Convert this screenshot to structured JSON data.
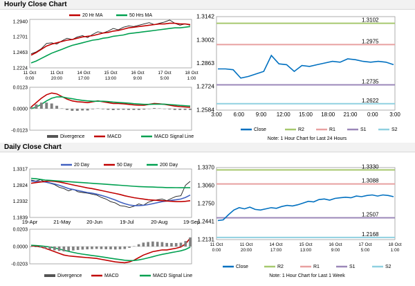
{
  "sections": {
    "hourly_title": "Hourly Close Chart",
    "daily_title": "Daily Close Chart"
  },
  "colors": {
    "price": "#1a1a1a",
    "ma_red": "#c00000",
    "ma_green": "#00a050",
    "ma_blue": "#4060c0",
    "close_line": "#0070c0",
    "r2": "#a6c86e",
    "r1": "#e8a0a0",
    "s1": "#9b87b8",
    "s2": "#8fd0e0",
    "divergence": "#808080"
  },
  "chart_data": [
    {
      "id": "hourly-price",
      "type": "line",
      "legend": [
        "20 Hr MA",
        "50 Hrs MA"
      ],
      "y_ticks": [
        "1.2940",
        "1.2701",
        "1.2463",
        "1.2224"
      ],
      "y_tick_values": [
        1.294,
        1.2701,
        1.2463,
        1.2224
      ],
      "ylim": [
        1.2224,
        1.297
      ],
      "x_ticks": [
        [
          "11 Oct",
          "0:00"
        ],
        [
          "11 Oct",
          "20:00"
        ],
        [
          "14 Oct",
          "17:00"
        ],
        [
          "15 Oct",
          "13:00"
        ],
        [
          "16 Oct",
          "9:00"
        ],
        [
          "17 Oct",
          "5:00"
        ],
        [
          "18 Oct",
          "1:00"
        ]
      ],
      "series": [
        {
          "name": "Price",
          "values": [
            1.244,
            1.247,
            1.252,
            1.26,
            1.261,
            1.259,
            1.264,
            1.268,
            1.266,
            1.27,
            1.272,
            1.269,
            1.274,
            1.278,
            1.276,
            1.279,
            1.283,
            1.281,
            1.285,
            1.287,
            1.286,
            1.288,
            1.29,
            1.292,
            1.289,
            1.291,
            1.293,
            1.296,
            1.291,
            1.288,
            1.29,
            1.288
          ]
        },
        {
          "name": "20 Hr MA",
          "values": [
            1.242,
            1.246,
            1.251,
            1.256,
            1.259,
            1.261,
            1.263,
            1.265,
            1.266,
            1.268,
            1.27,
            1.271,
            1.272,
            1.274,
            1.276,
            1.277,
            1.279,
            1.28,
            1.282,
            1.284,
            1.285,
            1.286,
            1.287,
            1.288,
            1.289,
            1.29,
            1.29,
            1.291,
            1.291,
            1.29,
            1.29,
            1.289
          ]
        },
        {
          "name": "50 Hrs MA",
          "values": [
            1.23,
            1.233,
            1.237,
            1.241,
            1.245,
            1.248,
            1.251,
            1.254,
            1.257,
            1.259,
            1.261,
            1.263,
            1.265,
            1.266,
            1.268,
            1.269,
            1.271,
            1.272,
            1.273,
            1.275,
            1.276,
            1.277,
            1.278,
            1.279,
            1.28,
            1.281,
            1.282,
            1.283,
            1.284,
            1.284,
            1.285,
            1.286
          ]
        }
      ]
    },
    {
      "id": "hourly-macd",
      "type": "line",
      "legend": [
        "Divergence",
        "MACD",
        "MACD Signal Line"
      ],
      "y_ticks": [
        "0.0123",
        "0.0000",
        "-0.0123"
      ],
      "y_tick_values": [
        0.0123,
        0.0,
        -0.0123
      ],
      "ylim": [
        -0.0123,
        0.0123
      ],
      "series": [
        {
          "name": "MACD",
          "values": [
            0.001,
            0.0035,
            0.006,
            0.008,
            0.009,
            0.0085,
            0.007,
            0.0055,
            0.0045,
            0.004,
            0.0038,
            0.0035,
            0.004,
            0.0045,
            0.004,
            0.0035,
            0.003,
            0.003,
            0.0028,
            0.0025,
            0.0022,
            0.002,
            0.002,
            0.0025,
            0.003,
            0.0028,
            0.0025,
            0.002,
            0.0015,
            0.0012,
            0.001,
            0.0008
          ]
        },
        {
          "name": "MACD Signal Line",
          "values": [
            0.0,
            0.001,
            0.0025,
            0.0045,
            0.006,
            0.0068,
            0.0068,
            0.0062,
            0.0057,
            0.0052,
            0.0048,
            0.0045,
            0.0043,
            0.0043,
            0.0043,
            0.0041,
            0.0038,
            0.0036,
            0.0034,
            0.0032,
            0.0029,
            0.0027,
            0.0025,
            0.0025,
            0.0026,
            0.0026,
            0.0026,
            0.0024,
            0.0022,
            0.0019,
            0.0017,
            0.0015
          ]
        },
        {
          "name": "Divergence",
          "values": [
            0.001,
            0.0025,
            0.0035,
            0.0035,
            0.003,
            0.0017,
            0.0002,
            -0.0007,
            -0.0012,
            -0.0012,
            -0.001,
            -0.001,
            -0.0003,
            0.0002,
            -0.0003,
            -0.0006,
            -0.0008,
            -0.0006,
            -0.0006,
            -0.0007,
            -0.0007,
            -0.0007,
            -0.0005,
            0.0,
            0.0004,
            0.0002,
            -0.0001,
            -0.0004,
            -0.0007,
            -0.0007,
            -0.0007,
            -0.0007
          ]
        }
      ]
    },
    {
      "id": "hourly-24h",
      "type": "line",
      "note": "Note: 1 Hour Chart for Last 24 Hours",
      "y_ticks": [
        "1.3142",
        "1.3002",
        "1.2863",
        "1.2724",
        "1.2584"
      ],
      "y_tick_values": [
        1.3142,
        1.3002,
        1.2863,
        1.2724,
        1.2584
      ],
      "ylim": [
        1.2584,
        1.3142
      ],
      "x_ticks": [
        "3:00",
        "6:00",
        "9:00",
        "12:00",
        "15:00",
        "18:00",
        "21:00",
        "0:00",
        "3:00"
      ],
      "levels": [
        {
          "name": "R2",
          "value": 1.3102,
          "label": "1.3102"
        },
        {
          "name": "R1",
          "value": 1.2975,
          "label": "1.2975"
        },
        {
          "name": "S1",
          "value": 1.2735,
          "label": "1.2735"
        },
        {
          "name": "S2",
          "value": 1.2622,
          "label": "1.2622"
        }
      ],
      "legend": [
        "Close",
        "R2",
        "R1",
        "S1",
        "S2"
      ],
      "series": [
        {
          "name": "Close",
          "values": [
            1.283,
            1.283,
            1.2825,
            1.2775,
            1.2785,
            1.28,
            1.2815,
            1.291,
            1.286,
            1.2855,
            1.2815,
            1.285,
            1.2845,
            1.2855,
            1.2865,
            1.2875,
            1.287,
            1.289,
            1.2885,
            1.2875,
            1.287,
            1.2875,
            1.287,
            1.2855
          ]
        }
      ]
    },
    {
      "id": "daily-price",
      "type": "line",
      "legend": [
        "20 Day",
        "50 Day",
        "200 Day"
      ],
      "y_ticks": [
        "1.3317",
        "1.2824",
        "1.2332",
        "1.1839"
      ],
      "y_tick_values": [
        1.3317,
        1.2824,
        1.2332,
        1.1839
      ],
      "ylim": [
        1.1839,
        1.3317
      ],
      "x_ticks": [
        "19-Apr",
        "21-May",
        "20-Jun",
        "19-Jul",
        "20-Aug",
        "19-Sep"
      ],
      "series": [
        {
          "name": "Price",
          "values": [
            1.298,
            1.295,
            1.299,
            1.292,
            1.288,
            1.284,
            1.276,
            1.272,
            1.265,
            1.27,
            1.262,
            1.26,
            1.258,
            1.255,
            1.252,
            1.245,
            1.24,
            1.232,
            1.228,
            1.22,
            1.218,
            1.214,
            1.218,
            1.225,
            1.221,
            1.23,
            1.235,
            1.238,
            1.24,
            1.235,
            1.242,
            1.248,
            1.25,
            1.282,
            1.294
          ]
        },
        {
          "name": "20 Day",
          "values": [
            1.295,
            1.294,
            1.293,
            1.292,
            1.289,
            1.286,
            1.282,
            1.277,
            1.272,
            1.269,
            1.266,
            1.263,
            1.26,
            1.258,
            1.255,
            1.251,
            1.247,
            1.242,
            1.237,
            1.231,
            1.226,
            1.222,
            1.22,
            1.22,
            1.221,
            1.223,
            1.226,
            1.229,
            1.232,
            1.234,
            1.236,
            1.238,
            1.24,
            1.245,
            1.252
          ]
        },
        {
          "name": "50 Day",
          "values": [
            1.288,
            1.29,
            1.292,
            1.294,
            1.295,
            1.294,
            1.292,
            1.289,
            1.286,
            1.283,
            1.28,
            1.277,
            1.274,
            1.272,
            1.269,
            1.266,
            1.263,
            1.26,
            1.257,
            1.254,
            1.25,
            1.247,
            1.244,
            1.242,
            1.24,
            1.238,
            1.237,
            1.236,
            1.235,
            1.234,
            1.233,
            1.232,
            1.232,
            1.233,
            1.235
          ]
        },
        {
          "name": "200 Day",
          "values": [
            1.303,
            1.302,
            1.3,
            1.298,
            1.297,
            1.296,
            1.295,
            1.294,
            1.293,
            1.292,
            1.291,
            1.29,
            1.289,
            1.288,
            1.287,
            1.286,
            1.285,
            1.284,
            1.283,
            1.282,
            1.281,
            1.28,
            1.279,
            1.278,
            1.2775,
            1.277,
            1.2765,
            1.276,
            1.2755,
            1.275,
            1.2748,
            1.2746,
            1.2745,
            1.2744,
            1.2744
          ]
        }
      ]
    },
    {
      "id": "daily-macd",
      "type": "line",
      "legend": [
        "Divergence",
        "MACD",
        "MACD Signal Line"
      ],
      "y_ticks": [
        "0.0203",
        "0.0000",
        "-0.0203"
      ],
      "y_tick_values": [
        0.0203,
        0.0,
        -0.0203
      ],
      "ylim": [
        -0.0203,
        0.0203
      ],
      "series": [
        {
          "name": "MACD",
          "values": [
            0.001,
            0.0005,
            -0.0005,
            -0.002,
            -0.004,
            -0.006,
            -0.008,
            -0.01,
            -0.011,
            -0.0115,
            -0.012,
            -0.0125,
            -0.013,
            -0.0135,
            -0.014,
            -0.015,
            -0.016,
            -0.017,
            -0.018,
            -0.0185,
            -0.019,
            -0.018,
            -0.016,
            -0.013,
            -0.01,
            -0.008,
            -0.006,
            -0.005,
            -0.004,
            -0.004,
            -0.003,
            -0.002,
            -0.0005,
            0.003,
            0.01
          ]
        },
        {
          "name": "MACD Signal Line",
          "values": [
            0.0015,
            0.0012,
            0.0008,
            0.0002,
            -0.0006,
            -0.0016,
            -0.0029,
            -0.0043,
            -0.0057,
            -0.0069,
            -0.008,
            -0.0089,
            -0.0097,
            -0.0105,
            -0.0112,
            -0.012,
            -0.0128,
            -0.0137,
            -0.0145,
            -0.0153,
            -0.0161,
            -0.0165,
            -0.0164,
            -0.0157,
            -0.0146,
            -0.0133,
            -0.0119,
            -0.0105,
            -0.0092,
            -0.0082,
            -0.0071,
            -0.0061,
            -0.005,
            -0.0034,
            -0.0007
          ]
        },
        {
          "name": "Divergence",
          "values": [
            -0.0005,
            -0.0007,
            -0.0013,
            -0.0022,
            -0.0034,
            -0.0044,
            -0.0051,
            -0.0057,
            -0.0053,
            -0.0046,
            -0.004,
            -0.0036,
            -0.0033,
            -0.003,
            -0.0028,
            -0.003,
            -0.0032,
            -0.0033,
            -0.0035,
            -0.0032,
            -0.0029,
            -0.0015,
            0.0004,
            0.0027,
            0.0046,
            0.0053,
            0.0059,
            0.0055,
            0.0052,
            0.0042,
            0.0041,
            0.0041,
            0.0045,
            0.0064,
            0.0107
          ]
        }
      ]
    },
    {
      "id": "daily-week",
      "type": "line",
      "note": "Note: 1 Hour Chart for Last 1 Week",
      "y_ticks": [
        "1.3370",
        "1.3060",
        "1.2750",
        "1.2441",
        "1.2131"
      ],
      "y_tick_values": [
        1.337,
        1.306,
        1.275,
        1.2441,
        1.2131
      ],
      "ylim": [
        1.2131,
        1.337
      ],
      "x_ticks": [
        [
          "11 Oct",
          "0:00"
        ],
        [
          "11 Oct",
          "20:00"
        ],
        [
          "14 Oct",
          "17:00"
        ],
        [
          "15 Oct",
          "13:00"
        ],
        [
          "16 Oct",
          "9:00"
        ],
        [
          "17 Oct",
          "5:00"
        ],
        [
          "18 Oct",
          "1:00"
        ]
      ],
      "levels": [
        {
          "name": "R2",
          "value": 1.333,
          "label": "1.3330"
        },
        {
          "name": "R1",
          "value": 1.3088,
          "label": "1.3088"
        },
        {
          "name": "S1",
          "value": 1.2507,
          "label": "1.2507"
        },
        {
          "name": "S2",
          "value": 1.2168,
          "label": "1.2168"
        }
      ],
      "legend": [
        "Close",
        "R2",
        "R1",
        "S1",
        "S2"
      ],
      "series": [
        {
          "name": "Close",
          "values": [
            1.246,
            1.247,
            1.256,
            1.264,
            1.268,
            1.266,
            1.269,
            1.265,
            1.264,
            1.266,
            1.268,
            1.267,
            1.27,
            1.272,
            1.271,
            1.273,
            1.276,
            1.279,
            1.278,
            1.282,
            1.283,
            1.281,
            1.284,
            1.285,
            1.286,
            1.285,
            1.288,
            1.287,
            1.289,
            1.29,
            1.288,
            1.29,
            1.289,
            1.287
          ]
        }
      ]
    }
  ]
}
